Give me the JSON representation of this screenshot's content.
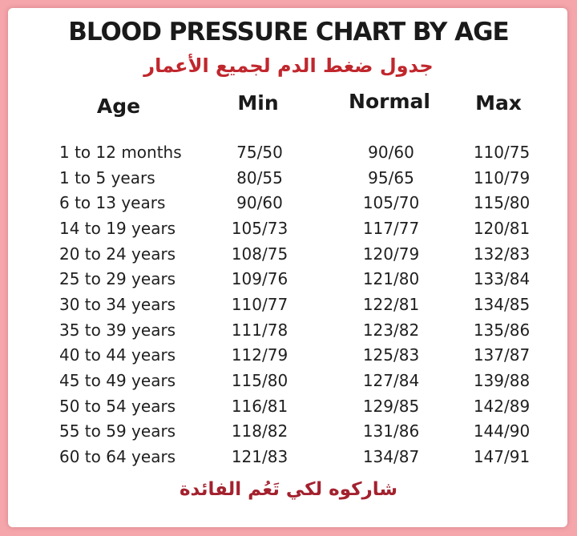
{
  "title": "BLOOD PRESSURE CHART BY AGE",
  "subtitle_ar": "جدول ضغط الدم لجميع الأعمار",
  "headers": {
    "age": "Age",
    "min": "Min",
    "normal": "Normal",
    "max": "Max"
  },
  "rows": [
    {
      "age": "1 to 12 months",
      "min": "75/50",
      "normal": "90/60",
      "max": "110/75"
    },
    {
      "age": "1 to 5 years",
      "min": "80/55",
      "normal": "95/65",
      "max": "110/79"
    },
    {
      "age": "6 to 13 years",
      "min": "90/60",
      "normal": "105/70",
      "max": "115/80"
    },
    {
      "age": "14 to 19 years",
      "min": "105/73",
      "normal": "117/77",
      "max": "120/81"
    },
    {
      "age": "20 to 24 years",
      "min": "108/75",
      "normal": "120/79",
      "max": "132/83"
    },
    {
      "age": "25 to 29 years",
      "min": "109/76",
      "normal": "121/80",
      "max": "133/84"
    },
    {
      "age": "30 to 34 years",
      "min": "110/77",
      "normal": "122/81",
      "max": "134/85"
    },
    {
      "age": "35 to 39 years",
      "min": "111/78",
      "normal": "123/82",
      "max": "135/86"
    },
    {
      "age": "40 to 44 years",
      "min": "112/79",
      "normal": "125/83",
      "max": "137/87"
    },
    {
      "age": "45 to 49 years",
      "min": "115/80",
      "normal": "127/84",
      "max": "139/88"
    },
    {
      "age": "50 to 54 years",
      "min": "116/81",
      "normal": "129/85",
      "max": "142/89"
    },
    {
      "age": "55 to 59 years",
      "min": "118/82",
      "normal": "131/86",
      "max": "144/90"
    },
    {
      "age": "60 to 64 years",
      "min": "121/83",
      "normal": "134/87",
      "max": "147/91"
    }
  ],
  "footer_ar": "شاركوه لكي تَعُم الفائدة",
  "colors": {
    "border": "#f4a6ab",
    "background": "#ffffff",
    "title_text": "#1a1a1a",
    "arabic_text": "#c0272d"
  }
}
